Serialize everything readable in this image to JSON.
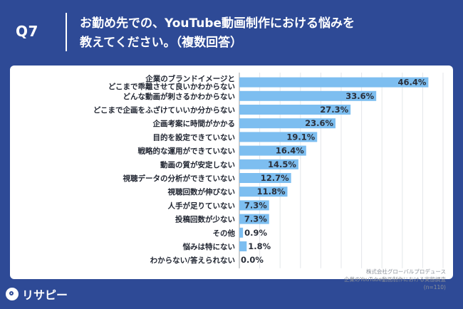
{
  "header": {
    "qnum": "Q7",
    "title_line1": "お勤め先での、YouTube動画制作における悩みを",
    "title_line2": "教えてください。（複数回答）"
  },
  "source": {
    "company": "株式会社グローバルプロデュース",
    "survey": "企業のYouTube動画制作における実態調査",
    "sample": "(n=110)"
  },
  "logo": {
    "text": "リサピー",
    "icon": "magnifier-logo-icon"
  },
  "colors": {
    "bar": "#7dbef0",
    "background": "#2e4a96",
    "grid": "#e3e6ea"
  },
  "chart_data": {
    "type": "bar",
    "orientation": "horizontal",
    "categories": [
      [
        "企業のブランドイメージと",
        "どこまで乖離させて良いかわからない"
      ],
      [
        "どんな動画が刺さるかわからない"
      ],
      [
        "どこまで企画をふざけていいか分からない"
      ],
      [
        "企画考案に時間がかかる"
      ],
      [
        "目的を設定できていない"
      ],
      [
        "戦略的な運用ができていない"
      ],
      [
        "動画の質が安定しない"
      ],
      [
        "視聴データの分析ができていない"
      ],
      [
        "視聴回数が伸びない"
      ],
      [
        "人手が足りていない"
      ],
      [
        "投稿回数が少ない"
      ],
      [
        "その他"
      ],
      [
        "悩みは特にない"
      ],
      [
        "わからない/答えられない"
      ]
    ],
    "values": [
      46.4,
      33.6,
      27.3,
      23.6,
      19.1,
      16.4,
      14.5,
      12.7,
      11.8,
      7.3,
      7.3,
      0.9,
      1.8,
      0.0
    ],
    "value_labels": [
      "46.4%",
      "33.6%",
      "27.3%",
      "23.6%",
      "19.1%",
      "16.4%",
      "14.5%",
      "12.7%",
      "11.8%",
      "7.3%",
      "7.3%",
      "0.9%",
      "1.8%",
      "0.0%"
    ],
    "xlim": [
      0,
      50
    ],
    "grid": true,
    "legend": "none"
  }
}
